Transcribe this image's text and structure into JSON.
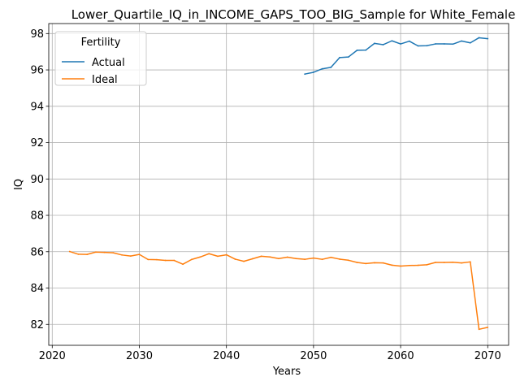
{
  "chart_data": {
    "type": "line",
    "title": "Lower_Quartile_IQ_in_INCOME_GAPS_TOO_BIG_Sample for White_Female",
    "xlabel": "Years",
    "ylabel": "IQ",
    "xlim": [
      2019.6,
      2072.4
    ],
    "ylim": [
      80.85,
      98.55
    ],
    "xticks": [
      2020,
      2030,
      2040,
      2050,
      2060,
      2070
    ],
    "yticks": [
      82,
      84,
      86,
      88,
      90,
      92,
      94,
      96,
      98
    ],
    "grid": true,
    "legend": {
      "title": "Fertility",
      "position": "upper left"
    },
    "series": [
      {
        "name": "Actual",
        "color": "#1f77b4",
        "x": [
          2049,
          2050,
          2051,
          2052,
          2053,
          2054,
          2055,
          2056,
          2057,
          2058,
          2059,
          2060,
          2061,
          2062,
          2063,
          2064,
          2065,
          2066,
          2067,
          2068,
          2069,
          2070
        ],
        "values": [
          95.77,
          95.87,
          96.06,
          96.14,
          96.68,
          96.71,
          97.08,
          97.09,
          97.46,
          97.39,
          97.6,
          97.43,
          97.58,
          97.32,
          97.33,
          97.43,
          97.43,
          97.42,
          97.59,
          97.49,
          97.77,
          97.72
        ]
      },
      {
        "name": "Ideal",
        "color": "#ff7f0e",
        "x": [
          2022,
          2023,
          2024,
          2025,
          2026,
          2027,
          2028,
          2029,
          2030,
          2031,
          2032,
          2033,
          2034,
          2035,
          2036,
          2037,
          2038,
          2039,
          2040,
          2041,
          2042,
          2043,
          2044,
          2045,
          2046,
          2047,
          2048,
          2049,
          2050,
          2051,
          2052,
          2053,
          2054,
          2055,
          2056,
          2057,
          2058,
          2059,
          2060,
          2061,
          2062,
          2063,
          2064,
          2065,
          2066,
          2067,
          2068,
          2069,
          2070
        ],
        "values": [
          86.01,
          85.86,
          85.85,
          85.98,
          85.96,
          85.94,
          85.82,
          85.76,
          85.85,
          85.57,
          85.56,
          85.52,
          85.52,
          85.31,
          85.57,
          85.71,
          85.89,
          85.75,
          85.83,
          85.59,
          85.47,
          85.61,
          85.75,
          85.71,
          85.62,
          85.7,
          85.62,
          85.58,
          85.65,
          85.58,
          85.69,
          85.59,
          85.53,
          85.41,
          85.35,
          85.39,
          85.38,
          85.26,
          85.21,
          85.24,
          85.25,
          85.28,
          85.41,
          85.41,
          85.42,
          85.38,
          85.44,
          81.73,
          81.84
        ]
      }
    ]
  }
}
